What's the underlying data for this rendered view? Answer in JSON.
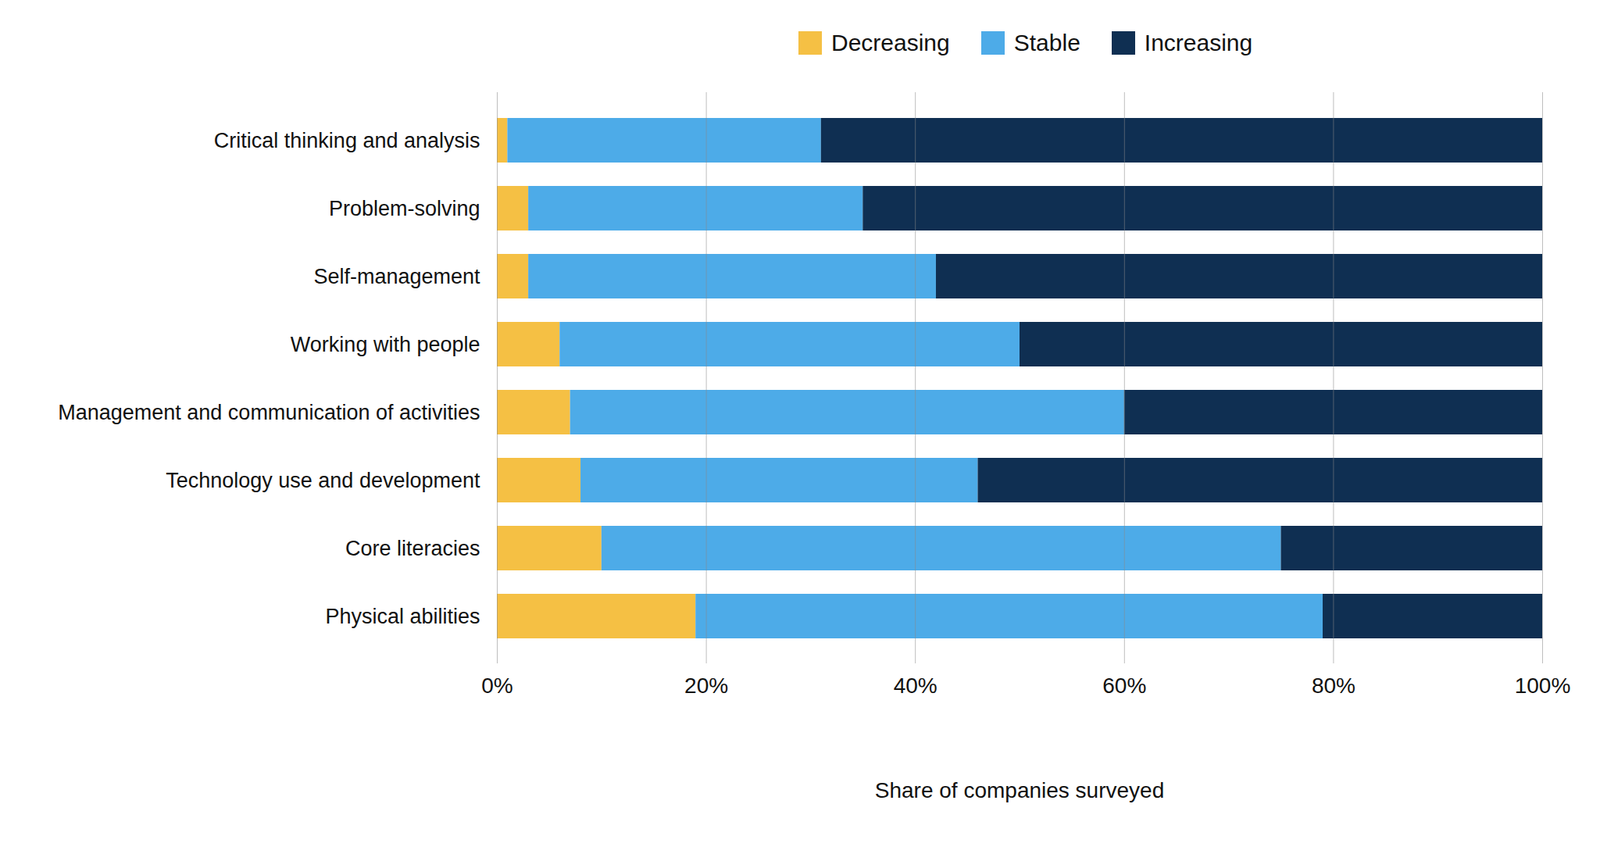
{
  "chart_data": {
    "type": "bar",
    "orientation": "horizontal",
    "stacked": true,
    "categories": [
      "Critical thinking and analysis",
      "Problem-solving",
      "Self-management",
      "Working with people",
      "Management and communication of activities",
      "Technology use and development",
      "Core literacies",
      "Physical abilities"
    ],
    "series": [
      {
        "name": "Decreasing",
        "color": "#f5c044",
        "values": [
          1,
          3,
          3,
          6,
          7,
          8,
          10,
          19
        ]
      },
      {
        "name": "Stable",
        "color": "#4dabe8",
        "values": [
          30,
          32,
          39,
          44,
          53,
          38,
          65,
          60
        ]
      },
      {
        "name": "Increasing",
        "color": "#0f2f52",
        "values": [
          69,
          65,
          58,
          50,
          40,
          54,
          25,
          21
        ]
      }
    ],
    "xlabel": "Share of companies surveyed",
    "xlim": [
      0,
      100
    ],
    "xticks": [
      {
        "value": 0,
        "label": "0%"
      },
      {
        "value": 20,
        "label": "20%"
      },
      {
        "value": 40,
        "label": "40%"
      },
      {
        "value": 60,
        "label": "60%"
      },
      {
        "value": 80,
        "label": "80%"
      },
      {
        "value": 100,
        "label": "100%"
      }
    ],
    "grid": true,
    "legend": "top"
  }
}
